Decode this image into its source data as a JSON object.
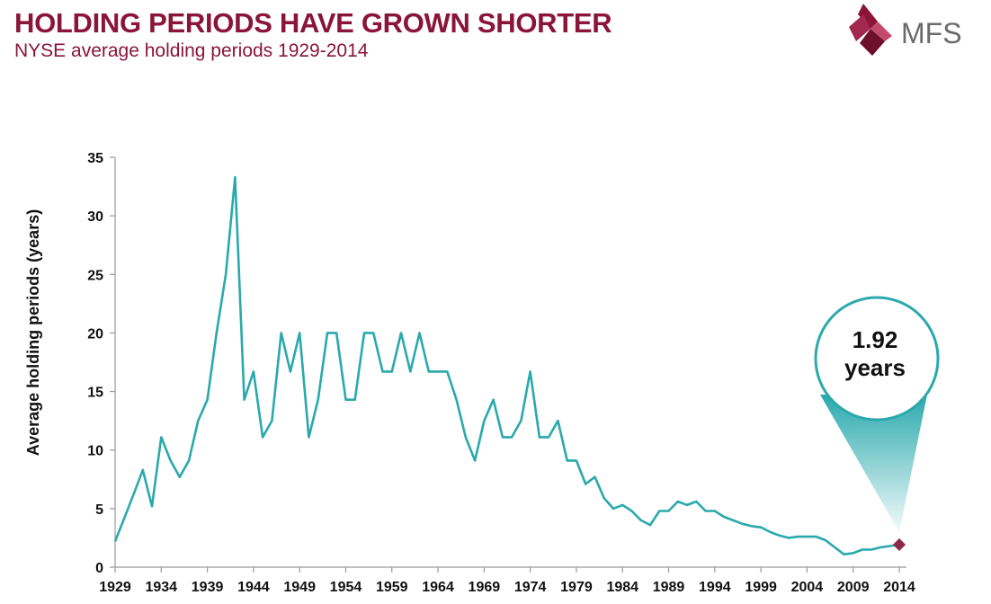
{
  "header": {
    "title": "HOLDING PERIODS HAVE GROWN SHORTER",
    "subtitle": "NYSE average holding periods 1929-2014"
  },
  "logo": {
    "text": "MFS",
    "icon": "mfs-logo-mark",
    "color": "#8b1538"
  },
  "colors": {
    "line": "#2aa9ad",
    "marker": "#8b2a4a",
    "callout_border": "#2aa9ad",
    "title": "#8b1538"
  },
  "callout": {
    "line1": "1.92",
    "line2": "years",
    "points_to_x": 2014,
    "points_to_y": 1.92
  },
  "chart_data": {
    "type": "line",
    "title": "NYSE average holding periods 1929-2014",
    "xlabel": "",
    "ylabel": "Average holding periods (years)",
    "xlim": [
      1929,
      2014
    ],
    "ylim": [
      0,
      35
    ],
    "yticks": [
      0,
      5,
      10,
      15,
      20,
      25,
      30,
      35
    ],
    "xticks": [
      1929,
      1934,
      1939,
      1944,
      1949,
      1954,
      1959,
      1964,
      1969,
      1974,
      1979,
      1984,
      1989,
      1994,
      1999,
      2004,
      2009,
      2014
    ],
    "grid": false,
    "legend": "none",
    "series": [
      {
        "x": [
          1929,
          1930,
          1931,
          1932,
          1933,
          1934,
          1935,
          1936,
          1937,
          1938,
          1939,
          1940,
          1941,
          1942,
          1943,
          1944,
          1945,
          1946,
          1947,
          1948,
          1949,
          1950,
          1951,
          1952,
          1953,
          1954,
          1955,
          1956,
          1957,
          1958,
          1959,
          1960,
          1961,
          1962,
          1963,
          1964,
          1965,
          1966,
          1967,
          1968,
          1969,
          1970,
          1971,
          1972,
          1973,
          1974,
          1975,
          1976,
          1977,
          1978,
          1979,
          1980,
          1981,
          1982,
          1983,
          1984,
          1985,
          1986,
          1987,
          1988,
          1989,
          1990,
          1991,
          1992,
          1993,
          1994,
          1995,
          1996,
          1997,
          1998,
          1999,
          2000,
          2001,
          2002,
          2003,
          2004,
          2005,
          2006,
          2007,
          2008,
          2009,
          2010,
          2011,
          2012,
          2013,
          2014
        ],
        "values": [
          2.2,
          4.2,
          6.2,
          8.3,
          5.2,
          11.1,
          9.1,
          7.7,
          9.1,
          12.5,
          14.3,
          20.0,
          25.0,
          33.3,
          14.3,
          16.7,
          11.1,
          12.5,
          20.0,
          16.7,
          20.0,
          11.1,
          14.3,
          20.0,
          20.0,
          14.3,
          14.3,
          20.0,
          20.0,
          16.7,
          16.7,
          20.0,
          16.7,
          20.0,
          16.7,
          16.7,
          16.7,
          14.3,
          11.1,
          9.1,
          12.5,
          14.3,
          11.1,
          11.1,
          12.5,
          16.7,
          11.1,
          11.1,
          12.5,
          9.1,
          9.1,
          7.1,
          7.7,
          5.9,
          5.0,
          5.3,
          4.8,
          4.0,
          3.6,
          4.8,
          4.8,
          5.6,
          5.3,
          5.6,
          4.8,
          4.8,
          4.3,
          4.0,
          3.7,
          3.5,
          3.4,
          3.0,
          2.7,
          2.5,
          2.6,
          2.6,
          2.6,
          2.3,
          1.7,
          1.1,
          1.2,
          1.5,
          1.5,
          1.7,
          1.8,
          1.92
        ]
      }
    ]
  }
}
